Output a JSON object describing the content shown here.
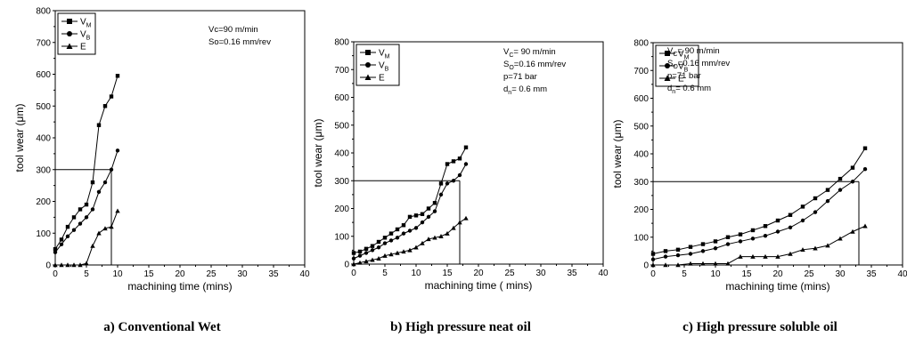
{
  "chart_data": [
    {
      "type": "line",
      "caption": "a) Conventional Wet",
      "xlabel": "machining time (mins)",
      "ylabel": "tool wear (μm)",
      "xlim": [
        0,
        40
      ],
      "ylim": [
        0,
        800
      ],
      "xticks": [
        "0",
        "5",
        "10",
        "15",
        "20",
        "25",
        "30",
        "35",
        "40"
      ],
      "yticks": [
        "0",
        "100",
        "200",
        "300",
        "400",
        "500",
        "600",
        "700",
        "800"
      ],
      "legend": {
        "position": "top-left",
        "entries": [
          {
            "marker": "square",
            "base": "V",
            "sub": "M"
          },
          {
            "marker": "circle",
            "base": "V",
            "sub": "B"
          },
          {
            "marker": "triangle",
            "base": "E",
            "sub": ""
          }
        ]
      },
      "conditions": [
        {
          "base": "Vc=90 m/min",
          "sub": "",
          "rest": ""
        },
        {
          "base": "So=0.16 mm/rev",
          "sub": "",
          "rest": ""
        }
      ],
      "reference_line": {
        "y": 300,
        "x": 9
      },
      "series": [
        {
          "name": "VM",
          "marker": "square",
          "x": [
            0,
            1,
            2,
            3,
            4,
            5,
            6,
            7,
            8,
            9,
            10
          ],
          "y": [
            50,
            80,
            120,
            150,
            175,
            190,
            260,
            440,
            500,
            530,
            595
          ]
        },
        {
          "name": "VB",
          "marker": "circle",
          "x": [
            0,
            1,
            2,
            3,
            4,
            5,
            6,
            7,
            8,
            9,
            10
          ],
          "y": [
            40,
            65,
            90,
            110,
            130,
            150,
            175,
            230,
            260,
            300,
            360
          ]
        },
        {
          "name": "E",
          "marker": "triangle",
          "x": [
            0,
            1,
            2,
            3,
            4,
            5,
            6,
            7,
            8,
            9,
            10
          ],
          "y": [
            0,
            0,
            0,
            0,
            0,
            5,
            60,
            100,
            115,
            120,
            170
          ]
        }
      ]
    },
    {
      "type": "line",
      "caption": "b) High pressure neat oil",
      "xlabel": "machining time ( mins)",
      "ylabel": "tool wear (μm)",
      "xlim": [
        0,
        40
      ],
      "ylim": [
        0,
        800
      ],
      "xticks": [
        "0",
        "5",
        "10",
        "15",
        "20",
        "25",
        "30",
        "35",
        "40"
      ],
      "yticks": [
        "0",
        "100",
        "200",
        "300",
        "400",
        "500",
        "600",
        "700",
        "800"
      ],
      "legend": {
        "position": "top-left",
        "entries": [
          {
            "marker": "square",
            "base": "V",
            "sub": "M"
          },
          {
            "marker": "circle",
            "base": "V",
            "sub": "B"
          },
          {
            "marker": "triangle",
            "base": "E",
            "sub": ""
          }
        ]
      },
      "conditions": [
        {
          "base": "V",
          "sub": "C",
          "rest": "= 90 m/min"
        },
        {
          "base": "S",
          "sub": "O",
          "rest": "=0.16 mm/rev"
        },
        {
          "base": "p=71 bar",
          "sub": "",
          "rest": ""
        },
        {
          "base": "d",
          "sub": "n",
          "rest": "= 0.6 mm"
        }
      ],
      "reference_line": {
        "y": 300,
        "x": 17
      },
      "series": [
        {
          "name": "VM",
          "marker": "square",
          "x": [
            0,
            1,
            2,
            3,
            4,
            5,
            6,
            7,
            8,
            9,
            10,
            11,
            12,
            13,
            14,
            15,
            16,
            17,
            18
          ],
          "y": [
            40,
            45,
            55,
            65,
            80,
            95,
            110,
            125,
            140,
            170,
            175,
            180,
            200,
            220,
            290,
            360,
            370,
            380,
            420
          ]
        },
        {
          "name": "VB",
          "marker": "circle",
          "x": [
            0,
            1,
            2,
            3,
            4,
            5,
            6,
            7,
            8,
            9,
            10,
            11,
            12,
            13,
            14,
            15,
            16,
            17,
            18
          ],
          "y": [
            20,
            30,
            40,
            50,
            60,
            75,
            85,
            95,
            110,
            120,
            130,
            150,
            170,
            190,
            250,
            290,
            300,
            320,
            360
          ]
        },
        {
          "name": "E",
          "marker": "triangle",
          "x": [
            0,
            1,
            2,
            3,
            4,
            5,
            6,
            7,
            8,
            9,
            10,
            11,
            12,
            13,
            14,
            15,
            16,
            17,
            18
          ],
          "y": [
            0,
            5,
            10,
            15,
            20,
            30,
            35,
            40,
            45,
            50,
            60,
            75,
            90,
            95,
            100,
            110,
            130,
            150,
            165
          ]
        }
      ]
    },
    {
      "type": "line",
      "caption": "c) High pressure soluble oil",
      "xlabel": "machining time (mins)",
      "ylabel": "tool wear (μm)",
      "xlim": [
        0,
        40
      ],
      "ylim": [
        0,
        800
      ],
      "xticks": [
        "0",
        "5",
        "10",
        "15",
        "20",
        "25",
        "30",
        "35",
        "40"
      ],
      "yticks": [
        "0",
        "100",
        "200",
        "300",
        "400",
        "500",
        "600",
        "700",
        "800"
      ],
      "legend": {
        "position": "top-left",
        "entries": [
          {
            "marker": "square",
            "base": "V",
            "sub": "M"
          },
          {
            "marker": "circle",
            "base": "V",
            "sub": "B"
          },
          {
            "marker": "triangle",
            "base": "E",
            "sub": ""
          }
        ]
      },
      "conditions": [
        {
          "base": "V",
          "sub": "C",
          "rest": "= 90 m/min"
        },
        {
          "base": "S",
          "sub": "O",
          "rest": "=0.16 mm/rev"
        },
        {
          "base": "p=71 bar",
          "sub": "",
          "rest": ""
        },
        {
          "base": "d",
          "sub": "n",
          "rest": "= 0.6 mm"
        }
      ],
      "reference_line": {
        "y": 300,
        "x": 33
      },
      "series": [
        {
          "name": "VM",
          "marker": "square",
          "x": [
            0,
            2,
            4,
            6,
            8,
            10,
            12,
            14,
            16,
            18,
            20,
            22,
            24,
            26,
            28,
            30,
            32,
            34
          ],
          "y": [
            40,
            50,
            55,
            65,
            75,
            85,
            100,
            110,
            125,
            140,
            160,
            180,
            210,
            240,
            270,
            310,
            350,
            420
          ]
        },
        {
          "name": "VB",
          "marker": "circle",
          "x": [
            0,
            2,
            4,
            6,
            8,
            10,
            12,
            14,
            16,
            18,
            20,
            22,
            24,
            26,
            28,
            30,
            32,
            34
          ],
          "y": [
            20,
            30,
            35,
            40,
            50,
            60,
            75,
            85,
            95,
            105,
            120,
            135,
            160,
            190,
            230,
            270,
            300,
            345
          ]
        },
        {
          "name": "E",
          "marker": "triangle",
          "x": [
            0,
            2,
            4,
            6,
            8,
            10,
            12,
            14,
            16,
            18,
            20,
            22,
            24,
            26,
            28,
            30,
            32,
            34
          ],
          "y": [
            0,
            0,
            0,
            5,
            5,
            5,
            5,
            30,
            30,
            30,
            30,
            40,
            55,
            60,
            70,
            95,
            120,
            140
          ]
        }
      ]
    }
  ]
}
